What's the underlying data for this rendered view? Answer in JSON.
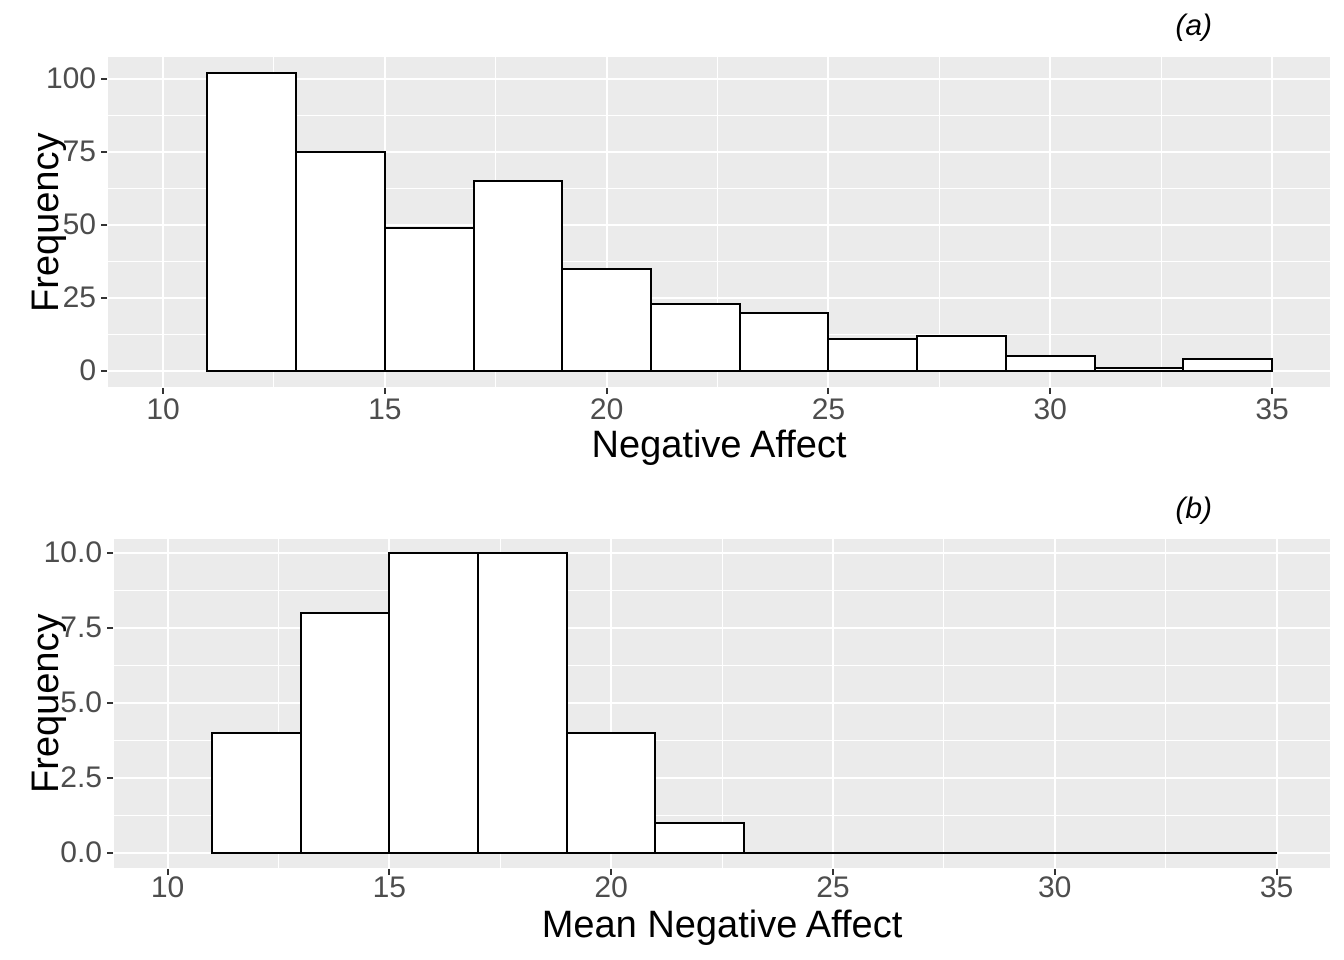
{
  "style": {
    "background": "#ffffff",
    "panel_background": "#ebebeb",
    "grid_color": "#ffffff",
    "bar_fill": "#ffffff",
    "bar_stroke": "#000000",
    "tick_label_color": "#4d4d4d",
    "tick_mark_color": "#333333",
    "text_color": "#000000"
  },
  "chart_data": [
    {
      "type": "bar",
      "subtype": "histogram",
      "panel_tag": "(a)",
      "xlabel": "Negative Affect",
      "ylabel": "Frequency",
      "bin_width": 2,
      "bins": [
        {
          "x0": 11,
          "x1": 13,
          "count": 102
        },
        {
          "x0": 13,
          "x1": 15,
          "count": 75
        },
        {
          "x0": 15,
          "x1": 17,
          "count": 49
        },
        {
          "x0": 17,
          "x1": 19,
          "count": 65
        },
        {
          "x0": 19,
          "x1": 21,
          "count": 35
        },
        {
          "x0": 21,
          "x1": 23,
          "count": 23
        },
        {
          "x0": 23,
          "x1": 25,
          "count": 20
        },
        {
          "x0": 25,
          "x1": 27,
          "count": 11
        },
        {
          "x0": 27,
          "x1": 29,
          "count": 12
        },
        {
          "x0": 29,
          "x1": 31,
          "count": 5
        },
        {
          "x0": 31,
          "x1": 33,
          "count": 1
        },
        {
          "x0": 33,
          "x1": 35,
          "count": 4
        }
      ],
      "x_ticks": [
        10,
        15,
        20,
        25,
        30,
        35
      ],
      "x_tick_labels": [
        "10",
        "15",
        "20",
        "25",
        "30",
        "35"
      ],
      "y_ticks": [
        0,
        25,
        50,
        75,
        100
      ],
      "y_tick_labels": [
        "0",
        "25",
        "50",
        "75",
        "100"
      ],
      "xlim": [
        8.8,
        36.3
      ],
      "ylim": [
        -5.4,
        107.5
      ],
      "grid": "white major and minor gridlines on grey panel",
      "legend": "none"
    },
    {
      "type": "bar",
      "subtype": "histogram",
      "panel_tag": "(b)",
      "xlabel": "Mean Negative Affect",
      "ylabel": "Frequency",
      "bin_width": 2,
      "bins": [
        {
          "x0": 11,
          "x1": 13,
          "count": 4
        },
        {
          "x0": 13,
          "x1": 15,
          "count": 8
        },
        {
          "x0": 15,
          "x1": 17,
          "count": 10
        },
        {
          "x0": 17,
          "x1": 19,
          "count": 10
        },
        {
          "x0": 19,
          "x1": 21,
          "count": 4
        },
        {
          "x0": 21,
          "x1": 23,
          "count": 1
        },
        {
          "x0": 23,
          "x1": 25,
          "count": 0
        },
        {
          "x0": 25,
          "x1": 27,
          "count": 0
        },
        {
          "x0": 27,
          "x1": 29,
          "count": 0
        },
        {
          "x0": 29,
          "x1": 31,
          "count": 0
        },
        {
          "x0": 31,
          "x1": 33,
          "count": 0
        },
        {
          "x0": 33,
          "x1": 35,
          "count": 0
        }
      ],
      "x_ticks": [
        10,
        15,
        20,
        25,
        30,
        35
      ],
      "x_tick_labels": [
        "10",
        "15",
        "20",
        "25",
        "30",
        "35"
      ],
      "y_ticks": [
        0,
        2.5,
        5,
        7.5,
        10
      ],
      "y_tick_labels": [
        "0.0",
        "2.5",
        "5.0",
        "7.5",
        "10.0"
      ],
      "xlim": [
        8.8,
        36.3
      ],
      "ylim": [
        -0.5,
        10.5
      ],
      "grid": "white major and minor gridlines on grey panel",
      "legend": "none"
    }
  ]
}
